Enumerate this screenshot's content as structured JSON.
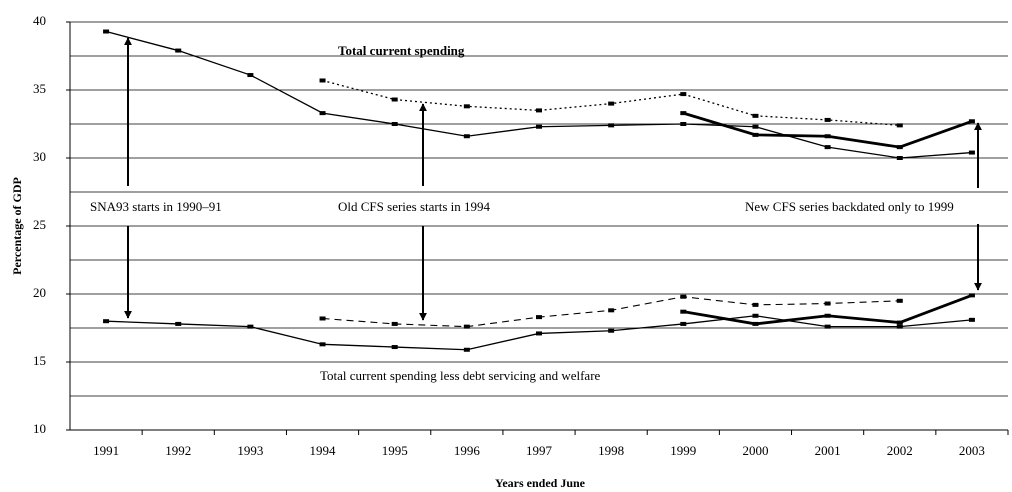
{
  "chart_data": {
    "type": "line",
    "y_label": "Percentage of GDP",
    "x_label": "Years ended June",
    "categories": [
      "1991",
      "1992",
      "1993",
      "1994",
      "1995",
      "1996",
      "1997",
      "1998",
      "1999",
      "2000",
      "2001",
      "2002",
      "2003"
    ],
    "ylim": [
      10,
      40
    ],
    "yticks": [
      10,
      15,
      20,
      25,
      30,
      35,
      40
    ],
    "minor_yticks": [
      12.5,
      17.5,
      22.5,
      27.5,
      32.5,
      37.5
    ],
    "grid": true,
    "annotations": [
      "Total current spending",
      "SNA93 starts in 1990–91",
      "Old CFS series starts in 1994",
      "New CFS series backdated only to 1999",
      "Total current spending less debt servicing and welfare"
    ],
    "series": [
      {
        "style": "solid",
        "color": "#000000",
        "values": [
          39.3,
          37.9,
          36.1,
          33.3,
          32.5,
          31.6,
          32.3,
          32.4,
          32.5,
          32.3,
          30.8,
          30.0,
          30.4
        ]
      },
      {
        "style": "dotted",
        "color": "#000000",
        "values": [
          null,
          null,
          null,
          35.7,
          34.3,
          33.8,
          33.5,
          34.0,
          34.7,
          33.1,
          32.8,
          32.4,
          null
        ]
      },
      {
        "style": "bold",
        "color": "#000000",
        "values": [
          null,
          null,
          null,
          null,
          null,
          null,
          null,
          null,
          33.3,
          31.7,
          31.6,
          30.8,
          32.7
        ]
      },
      {
        "style": "solid",
        "color": "#000000",
        "values": [
          18.0,
          17.8,
          17.6,
          16.3,
          16.1,
          15.9,
          17.1,
          17.3,
          17.8,
          18.4,
          17.6,
          17.6,
          18.1
        ]
      },
      {
        "style": "dashed",
        "color": "#000000",
        "values": [
          null,
          null,
          null,
          18.2,
          17.8,
          17.6,
          18.3,
          18.8,
          19.8,
          19.2,
          19.3,
          19.5,
          null
        ]
      },
      {
        "style": "bold",
        "color": "#000000",
        "values": [
          null,
          null,
          null,
          null,
          null,
          null,
          null,
          null,
          18.7,
          17.8,
          18.4,
          17.9,
          19.9
        ]
      }
    ]
  }
}
